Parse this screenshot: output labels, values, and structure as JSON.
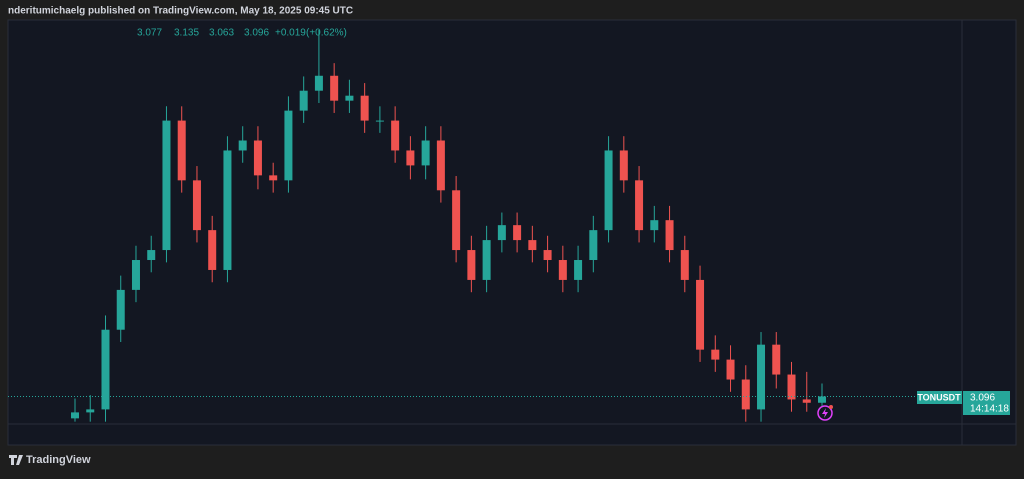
{
  "header": {
    "publisher_line": "nderitumichaelg published on TradingView.com, May 18, 2025 09:45 UTC"
  },
  "footer": {
    "brand": "TradingView"
  },
  "chart_data": {
    "type": "candlestick",
    "symbol": "TONUSDT",
    "up_color": "#26a69a",
    "down_color": "#ef5350",
    "ylim": [
      3.01,
      4.23
    ],
    "open": [
      3.03,
      3.048,
      3.057,
      3.297,
      3.417,
      3.507,
      3.537,
      3.927,
      3.747,
      3.597,
      3.477,
      3.837,
      3.867,
      3.762,
      3.747,
      3.957,
      4.017,
      4.062,
      3.987,
      4.002,
      3.927,
      3.927,
      3.837,
      3.792,
      3.867,
      3.717,
      3.537,
      3.447,
      3.567,
      3.612,
      3.567,
      3.537,
      3.507,
      3.447,
      3.507,
      3.597,
      3.837,
      3.747,
      3.597,
      3.627,
      3.537,
      3.447,
      3.237,
      3.207,
      3.147,
      3.057,
      3.252,
      3.162,
      3.087,
      3.077
    ],
    "high": [
      3.09,
      3.1,
      3.34,
      3.46,
      3.55,
      3.58,
      3.97,
      3.97,
      3.79,
      3.64,
      3.88,
      3.91,
      3.91,
      3.8,
      4.0,
      4.06,
      4.2,
      4.1,
      4.05,
      4.04,
      3.97,
      3.97,
      3.88,
      3.91,
      3.91,
      3.76,
      3.58,
      3.61,
      3.65,
      3.65,
      3.61,
      3.58,
      3.55,
      3.55,
      3.64,
      3.88,
      3.88,
      3.79,
      3.67,
      3.67,
      3.58,
      3.49,
      3.28,
      3.25,
      3.19,
      3.29,
      3.29,
      3.2,
      3.17,
      3.135
    ],
    "low": [
      3.02,
      3.02,
      3.02,
      3.26,
      3.38,
      3.47,
      3.5,
      3.71,
      3.56,
      3.44,
      3.44,
      3.8,
      3.72,
      3.71,
      3.71,
      3.92,
      3.98,
      3.95,
      3.95,
      3.89,
      3.89,
      3.8,
      3.75,
      3.75,
      3.68,
      3.5,
      3.41,
      3.41,
      3.53,
      3.53,
      3.5,
      3.47,
      3.41,
      3.41,
      3.47,
      3.56,
      3.71,
      3.56,
      3.56,
      3.5,
      3.41,
      3.2,
      3.17,
      3.11,
      3.02,
      3.02,
      3.12,
      3.05,
      3.05,
      3.063
    ],
    "close": [
      3.048,
      3.057,
      3.297,
      3.417,
      3.507,
      3.537,
      3.927,
      3.747,
      3.597,
      3.477,
      3.837,
      3.867,
      3.762,
      3.747,
      3.957,
      4.017,
      4.062,
      3.987,
      4.002,
      3.927,
      3.927,
      3.837,
      3.792,
      3.867,
      3.717,
      3.537,
      3.447,
      3.567,
      3.612,
      3.567,
      3.537,
      3.507,
      3.447,
      3.507,
      3.597,
      3.837,
      3.747,
      3.597,
      3.627,
      3.537,
      3.447,
      3.237,
      3.207,
      3.147,
      3.057,
      3.252,
      3.162,
      3.087,
      3.077,
      3.096
    ],
    "change": {
      "value": 0.019,
      "label": "+0.019"
    },
    "change_pct": {
      "value": 0.62,
      "label": "(+0.62%)"
    },
    "countdown": "14:14:18"
  }
}
